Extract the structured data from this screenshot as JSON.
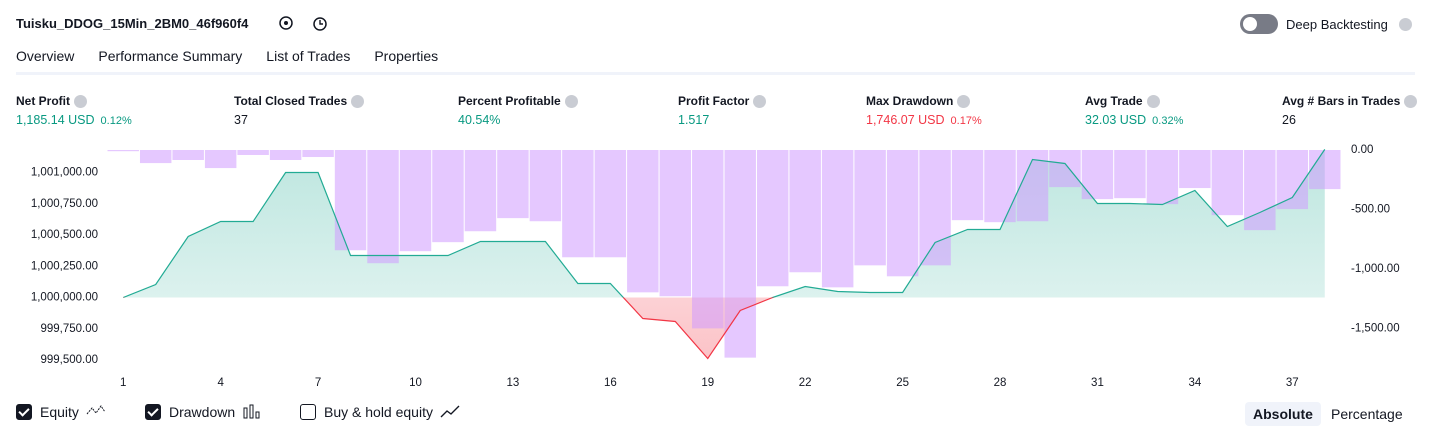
{
  "header": {
    "title": "Tuisku_DDOG_15Min_2BM0_46f960f4",
    "toggle_label": "Deep Backtesting"
  },
  "tabs": [
    "Overview",
    "Performance Summary",
    "List of Trades",
    "Properties"
  ],
  "active_tab": 0,
  "metrics": [
    {
      "label": "Net Profit",
      "value": "1,185.14 USD",
      "percent": "0.12%",
      "color": "#089981"
    },
    {
      "label": "Total Closed Trades",
      "value": "37",
      "color": "#131722"
    },
    {
      "label": "Percent Profitable",
      "value": "40.54%",
      "color": "#089981"
    },
    {
      "label": "Profit Factor",
      "value": "1.517",
      "color": "#089981"
    },
    {
      "label": "Max Drawdown",
      "value": "1,746.07 USD",
      "percent": "0.17%",
      "color": "#f23645"
    },
    {
      "label": "Avg Trade",
      "value": "32.03 USD",
      "percent": "0.32%",
      "color": "#089981"
    },
    {
      "label": "Avg # Bars in Trades",
      "value": "26",
      "color": "#131722"
    }
  ],
  "chart_data": {
    "type": "combo",
    "x": [
      1,
      2,
      3,
      4,
      5,
      6,
      7,
      8,
      9,
      10,
      11,
      12,
      13,
      14,
      15,
      16,
      17,
      18,
      19,
      20,
      21,
      22,
      23,
      24,
      25,
      26,
      27,
      28,
      29,
      30,
      31,
      32,
      33,
      34,
      35,
      36,
      37,
      38
    ],
    "xlim": [
      0.5,
      38.5
    ],
    "xticks": [
      1,
      4,
      7,
      10,
      13,
      16,
      19,
      22,
      25,
      28,
      31,
      34,
      37
    ],
    "ylim": [
      999420,
      1001180
    ],
    "yticks": [
      {
        "value": 999500,
        "label": "999,500.00"
      },
      {
        "value": 999750,
        "label": "999,750.00"
      },
      {
        "value": 1000000,
        "label": "1,000,000.00"
      },
      {
        "value": 1000250,
        "label": "1,000,250.00"
      },
      {
        "value": 1000500,
        "label": "1,000,500.00"
      },
      {
        "value": 1000750,
        "label": "1,000,750.00"
      },
      {
        "value": 1001000,
        "label": "1,001,000.00"
      }
    ],
    "y2lim": [
      -1850,
      0
    ],
    "y2ticks": [
      {
        "value": -1500,
        "label": "-1,500.00"
      },
      {
        "value": -1000,
        "label": "-1,000.00"
      },
      {
        "value": -500,
        "label": "-500.00"
      },
      {
        "value": 0,
        "label": "0.00"
      }
    ],
    "series": [
      {
        "name": "Equity",
        "type": "area",
        "color": "#22ab94",
        "negative_color": "#f23645",
        "axis": "y",
        "values": [
          1000000,
          1000104,
          1000488,
          1000608,
          1000608,
          1001000,
          1001000,
          1000336,
          1000336,
          1000336,
          1000336,
          1000448,
          1000448,
          1000448,
          1000112,
          1000112,
          999832,
          999808,
          999512,
          999896,
          1000000,
          1000088,
          1000048,
          1000040,
          1000040,
          1000440,
          1000544,
          1000544,
          1001104,
          1001072,
          1000752,
          1000752,
          1000744,
          1000856,
          1000568,
          1000680,
          1000800,
          1001185
        ]
      },
      {
        "name": "Drawdown",
        "type": "bar",
        "color": "#cf9bff",
        "axis": "y2",
        "values": [
          -10,
          -110,
          -84,
          -152,
          -42,
          -84,
          -59,
          -843,
          -952,
          -851,
          -775,
          -683,
          -573,
          -599,
          -902,
          -902,
          -1197,
          -1230,
          -1500,
          -1746,
          -1146,
          -1028,
          -1155,
          -970,
          -1062,
          -970,
          -590,
          -607,
          -599,
          -312,
          -413,
          -405,
          -455,
          -320,
          -548,
          -674,
          -497,
          -329
        ]
      }
    ]
  },
  "legend": [
    {
      "label": "Equity",
      "checked": true
    },
    {
      "label": "Drawdown",
      "checked": true
    },
    {
      "label": "Buy & hold equity",
      "checked": false
    }
  ],
  "scale_buttons": [
    "Absolute",
    "Percentage"
  ],
  "active_scale": 0
}
